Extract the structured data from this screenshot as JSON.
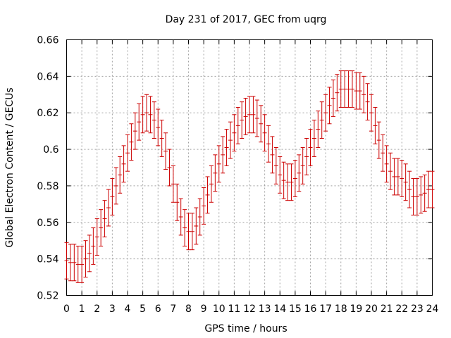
{
  "chart_data": {
    "type": "scatter",
    "title": "Day 231 of 2017, GEC from uqrg",
    "xlabel": "GPS time / hours",
    "ylabel": "Global Electron Content / GECUs",
    "xlim": [
      0,
      24
    ],
    "ylim": [
      0.52,
      0.66
    ],
    "xticks": [
      "0",
      "1",
      "2",
      "3",
      "4",
      "5",
      "6",
      "7",
      "8",
      "9",
      "10",
      "11",
      "12",
      "13",
      "14",
      "15",
      "16",
      "17",
      "18",
      "19",
      "20",
      "21",
      "22",
      "23",
      "24"
    ],
    "yticks": [
      "0.52",
      "0.54",
      "0.56",
      "0.58",
      "0.6",
      "0.62",
      "0.64",
      "0.66"
    ],
    "grid": true,
    "series_color": "#cc0000",
    "error_bar": 0.01,
    "x": [
      0,
      0.25,
      0.5,
      0.75,
      1,
      1.25,
      1.5,
      1.75,
      2,
      2.25,
      2.5,
      2.75,
      3,
      3.25,
      3.5,
      3.75,
      4,
      4.25,
      4.5,
      4.75,
      5,
      5.25,
      5.5,
      5.75,
      6,
      6.25,
      6.5,
      6.75,
      7,
      7.25,
      7.5,
      7.75,
      8,
      8.25,
      8.5,
      8.75,
      9,
      9.25,
      9.5,
      9.75,
      10,
      10.25,
      10.5,
      10.75,
      11,
      11.25,
      11.5,
      11.75,
      12,
      12.25,
      12.5,
      12.75,
      13,
      13.25,
      13.5,
      13.75,
      14,
      14.25,
      14.5,
      14.75,
      15,
      15.25,
      15.5,
      15.75,
      16,
      16.25,
      16.5,
      16.75,
      17,
      17.25,
      17.5,
      17.75,
      18,
      18.25,
      18.5,
      18.75,
      19,
      19.25,
      19.5,
      19.75,
      20,
      20.25,
      20.5,
      20.75,
      21,
      21.25,
      21.5,
      21.75,
      22,
      22.25,
      22.5,
      22.75,
      23,
      23.25,
      23.5,
      23.75,
      24
    ],
    "values": [
      0.539,
      0.538,
      0.538,
      0.537,
      0.537,
      0.54,
      0.543,
      0.547,
      0.552,
      0.557,
      0.562,
      0.568,
      0.574,
      0.58,
      0.586,
      0.592,
      0.598,
      0.604,
      0.61,
      0.615,
      0.619,
      0.62,
      0.619,
      0.616,
      0.612,
      0.606,
      0.599,
      0.59,
      0.581,
      0.571,
      0.563,
      0.557,
      0.555,
      0.555,
      0.558,
      0.563,
      0.569,
      0.575,
      0.581,
      0.587,
      0.592,
      0.597,
      0.601,
      0.605,
      0.609,
      0.613,
      0.616,
      0.618,
      0.619,
      0.619,
      0.617,
      0.614,
      0.609,
      0.603,
      0.597,
      0.591,
      0.586,
      0.583,
      0.582,
      0.582,
      0.584,
      0.587,
      0.591,
      0.596,
      0.601,
      0.606,
      0.611,
      0.616,
      0.62,
      0.624,
      0.628,
      0.631,
      0.633,
      0.633,
      0.633,
      0.633,
      0.632,
      0.632,
      0.63,
      0.626,
      0.62,
      0.613,
      0.605,
      0.598,
      0.592,
      0.588,
      0.585,
      0.585,
      0.584,
      0.582,
      0.578,
      0.574,
      0.574,
      0.575,
      0.576,
      0.578,
      0.578
    ]
  }
}
